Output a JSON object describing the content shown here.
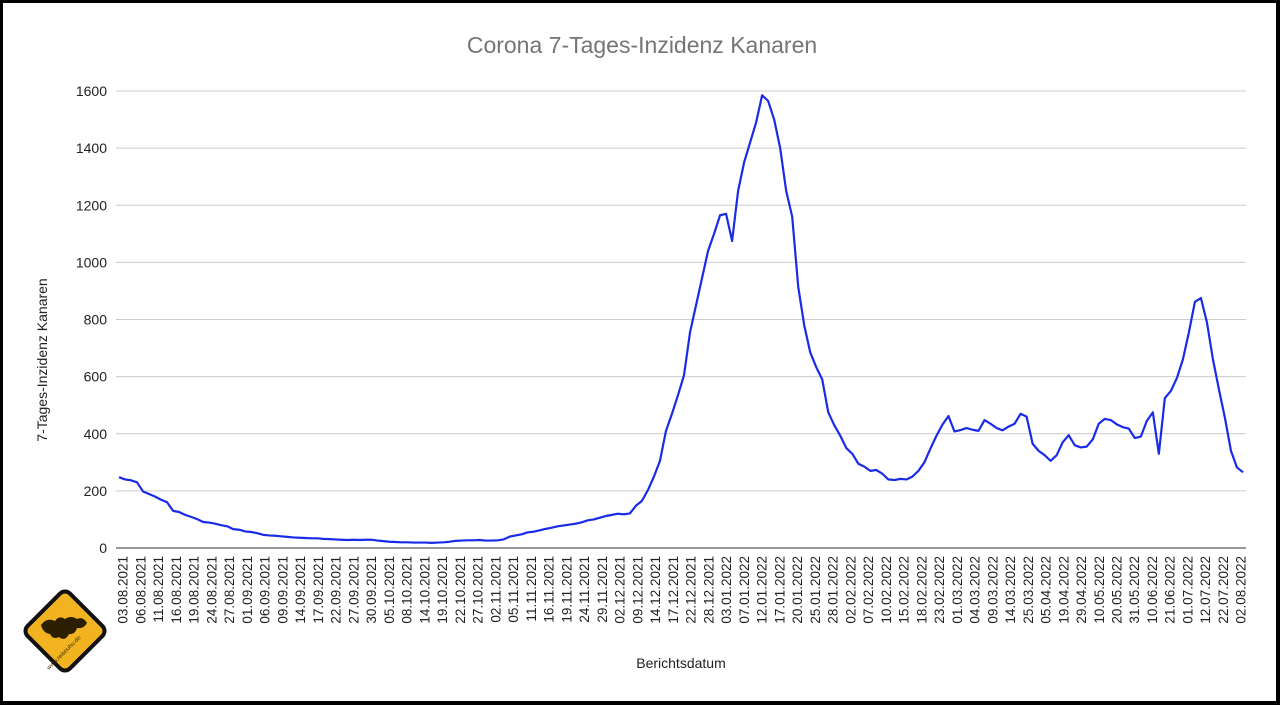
{
  "chart_data": {
    "type": "line",
    "title": "Corona 7-Tages-Inzidenz Kanaren",
    "xlabel": "Berichtsdatum",
    "ylabel": "7-Tages-Inzidenz Kanaren",
    "ylim": [
      0,
      1600
    ],
    "yticks": [
      "0",
      "200",
      "400",
      "600",
      "800",
      "1000",
      "1200",
      "1400",
      "1600"
    ],
    "grid": true,
    "line_color": "#1a2be8",
    "x_tick_labels": [
      "03.08.2021",
      "06.08.2021",
      "11.08.2021",
      "16.08.2021",
      "19.08.2021",
      "24.08.2021",
      "27.08.2021",
      "01.09.2021",
      "06.09.2021",
      "09.09.2021",
      "14.09.2021",
      "17.09.2021",
      "22.09.2021",
      "27.09.2021",
      "30.09.2021",
      "05.10.2021",
      "08.10.2021",
      "14.10.2021",
      "19.10.2021",
      "22.10.2021",
      "27.10.2021",
      "02.11.2021",
      "05.11.2021",
      "11.11.2021",
      "16.11.2021",
      "19.11.2021",
      "24.11.2021",
      "29.11.2021",
      "02.12.2021",
      "09.12.2021",
      "14.12.2021",
      "17.12.2021",
      "22.12.2021",
      "28.12.2021",
      "03.01.2022",
      "07.01.2022",
      "12.01.2022",
      "17.01.2022",
      "20.01.2022",
      "25.01.2022",
      "28.01.2022",
      "02.02.2022",
      "07.02.2022",
      "10.02.2022",
      "15.02.2022",
      "18.02.2022",
      "23.02.2022",
      "01.03.2022",
      "04.03.2022",
      "09.03.2022",
      "14.03.2022",
      "25.03.2022",
      "05.04.2022",
      "19.04.2022",
      "29.04.2022",
      "10.05.2022",
      "20.05.2022",
      "31.05.2022",
      "10.06.2022",
      "21.06.2022",
      "01.07.2022",
      "12.07.2022",
      "22.07.2022",
      "02.08.2022"
    ],
    "values": [
      248,
      240,
      237,
      230,
      198,
      189,
      180,
      169,
      160,
      130,
      126,
      116,
      109,
      101,
      91,
      89,
      85,
      80,
      76,
      66,
      64,
      58,
      56,
      52,
      46,
      44,
      43,
      41,
      39,
      37,
      36,
      35,
      34,
      34,
      32,
      31,
      30,
      29,
      28,
      29,
      28,
      29,
      29,
      26,
      24,
      22,
      21,
      20,
      20,
      19,
      19,
      19,
      18,
      19,
      20,
      22,
      25,
      26,
      27,
      27,
      28,
      26,
      26,
      27,
      30,
      40,
      44,
      48,
      55,
      57,
      62,
      67,
      71,
      76,
      79,
      82,
      85,
      90,
      97,
      100,
      106,
      112,
      116,
      120,
      118,
      121,
      148,
      165,
      203,
      250,
      305,
      410,
      470,
      535,
      605,
      755,
      850,
      945,
      1040,
      1100,
      1165,
      1170,
      1075,
      1250,
      1350,
      1420,
      1490,
      1585,
      1565,
      1500,
      1400,
      1250,
      1160,
      915,
      780,
      685,
      633,
      590,
      475,
      430,
      393,
      350,
      330,
      295,
      285,
      270,
      273,
      260,
      240,
      238,
      242,
      240,
      250,
      270,
      300,
      348,
      393,
      432,
      462,
      408,
      413,
      420,
      414,
      410,
      448,
      435,
      420,
      412,
      425,
      435,
      470,
      460,
      365,
      340,
      325,
      305,
      325,
      370,
      395,
      360,
      352,
      355,
      380,
      435,
      452,
      448,
      433,
      423,
      418,
      385,
      390,
      445,
      475,
      330,
      525,
      550,
      595,
      660,
      755,
      862,
      875,
      790,
      660,
      555,
      455,
      340,
      282,
      265
    ]
  },
  "logo": {
    "caption": "www.reiseuhu.de"
  }
}
